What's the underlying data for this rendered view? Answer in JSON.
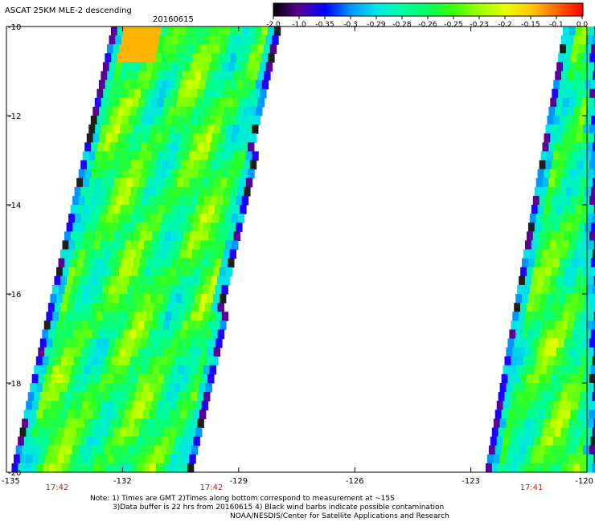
{
  "title": "ASCAT 25KM MLE-2 descending",
  "date": "20160615",
  "colorbar": {
    "labels": [
      "-2.0",
      "-1.0",
      "-0.35",
      "-0.3",
      "-0.29",
      "-0.28",
      "-0.26",
      "-0.25",
      "-0.23",
      "-0.2",
      "-0.15",
      "-0.1",
      "0.0"
    ],
    "colors": [
      "#000000",
      "#5a0096",
      "#0000ff",
      "#0096ff",
      "#00e6e6",
      "#00ffa0",
      "#00ff60",
      "#40ff00",
      "#a0ff00",
      "#e6ff00",
      "#ffc800",
      "#ff6400",
      "#ff0000"
    ]
  },
  "map": {
    "lat_labels": [
      "-10",
      "-12",
      "-14",
      "-16",
      "-18",
      "-20"
    ],
    "lon_labels": [
      "-135",
      "-132",
      "-129",
      "-126",
      "-123",
      "-120"
    ],
    "time_labels": [
      "17:42",
      "17:42",
      "17:41"
    ],
    "lat_range": [
      -20,
      -10
    ],
    "lon_range": [
      -135,
      -120
    ]
  },
  "notes": {
    "line1": "Note: 1) Times are GMT 2)Times along bottom correspond to measurement at ~15S",
    "line2": "3)Data buffer is 22 hrs from 20160615 4) Black wind barbs indicate possible contamination",
    "line3": "NOAA/NESDIS/Center for Satellite Applications and Research"
  }
}
